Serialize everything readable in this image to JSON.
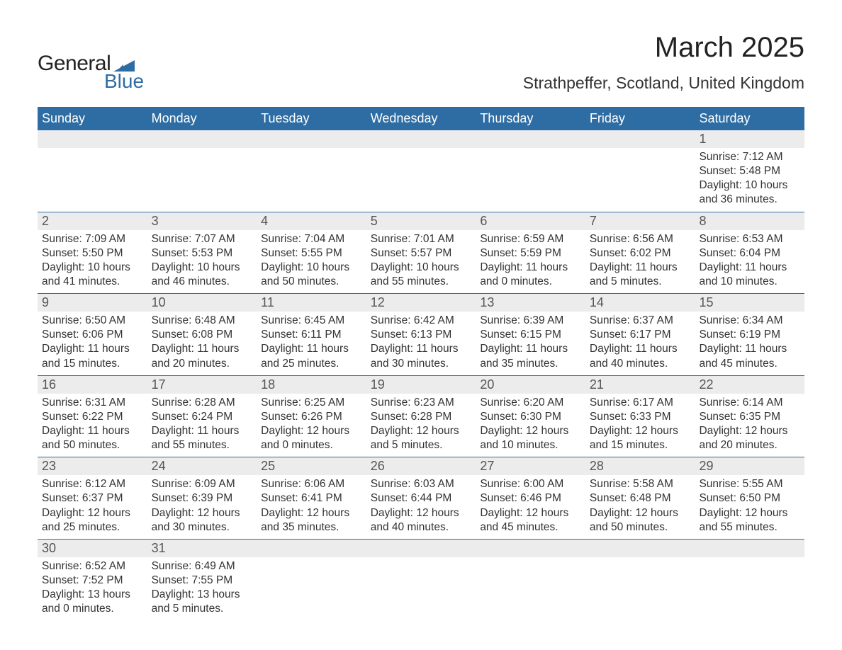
{
  "brand": {
    "logo_main": "General",
    "logo_sub": "Blue",
    "logo_main_color": "#222222",
    "logo_sub_color": "#2e6da4",
    "logo_triangle_color": "#2e6da4"
  },
  "header": {
    "title": "March 2025",
    "subtitle": "Strathpeffer, Scotland, United Kingdom",
    "title_fontsize": 40,
    "subtitle_fontsize": 23,
    "title_color": "#222222"
  },
  "colors": {
    "dow_background": "#2e6da4",
    "dow_text": "#ffffff",
    "daynum_background": "#ececec",
    "daynum_text": "#555555",
    "body_text": "#333333",
    "week_border": "#2e6da4",
    "page_background": "#ffffff"
  },
  "typography": {
    "dow_fontsize": 18,
    "daynum_fontsize": 18,
    "data_fontsize": 15.5,
    "font_family": "Arial"
  },
  "days_of_week": [
    "Sunday",
    "Monday",
    "Tuesday",
    "Wednesday",
    "Thursday",
    "Friday",
    "Saturday"
  ],
  "weeks": [
    [
      {
        "n": "",
        "sunrise": "",
        "sunset": "",
        "daylight1": "",
        "daylight2": ""
      },
      {
        "n": "",
        "sunrise": "",
        "sunset": "",
        "daylight1": "",
        "daylight2": ""
      },
      {
        "n": "",
        "sunrise": "",
        "sunset": "",
        "daylight1": "",
        "daylight2": ""
      },
      {
        "n": "",
        "sunrise": "",
        "sunset": "",
        "daylight1": "",
        "daylight2": ""
      },
      {
        "n": "",
        "sunrise": "",
        "sunset": "",
        "daylight1": "",
        "daylight2": ""
      },
      {
        "n": "",
        "sunrise": "",
        "sunset": "",
        "daylight1": "",
        "daylight2": ""
      },
      {
        "n": "1",
        "sunrise": "Sunrise: 7:12 AM",
        "sunset": "Sunset: 5:48 PM",
        "daylight1": "Daylight: 10 hours",
        "daylight2": "and 36 minutes."
      }
    ],
    [
      {
        "n": "2",
        "sunrise": "Sunrise: 7:09 AM",
        "sunset": "Sunset: 5:50 PM",
        "daylight1": "Daylight: 10 hours",
        "daylight2": "and 41 minutes."
      },
      {
        "n": "3",
        "sunrise": "Sunrise: 7:07 AM",
        "sunset": "Sunset: 5:53 PM",
        "daylight1": "Daylight: 10 hours",
        "daylight2": "and 46 minutes."
      },
      {
        "n": "4",
        "sunrise": "Sunrise: 7:04 AM",
        "sunset": "Sunset: 5:55 PM",
        "daylight1": "Daylight: 10 hours",
        "daylight2": "and 50 minutes."
      },
      {
        "n": "5",
        "sunrise": "Sunrise: 7:01 AM",
        "sunset": "Sunset: 5:57 PM",
        "daylight1": "Daylight: 10 hours",
        "daylight2": "and 55 minutes."
      },
      {
        "n": "6",
        "sunrise": "Sunrise: 6:59 AM",
        "sunset": "Sunset: 5:59 PM",
        "daylight1": "Daylight: 11 hours",
        "daylight2": "and 0 minutes."
      },
      {
        "n": "7",
        "sunrise": "Sunrise: 6:56 AM",
        "sunset": "Sunset: 6:02 PM",
        "daylight1": "Daylight: 11 hours",
        "daylight2": "and 5 minutes."
      },
      {
        "n": "8",
        "sunrise": "Sunrise: 6:53 AM",
        "sunset": "Sunset: 6:04 PM",
        "daylight1": "Daylight: 11 hours",
        "daylight2": "and 10 minutes."
      }
    ],
    [
      {
        "n": "9",
        "sunrise": "Sunrise: 6:50 AM",
        "sunset": "Sunset: 6:06 PM",
        "daylight1": "Daylight: 11 hours",
        "daylight2": "and 15 minutes."
      },
      {
        "n": "10",
        "sunrise": "Sunrise: 6:48 AM",
        "sunset": "Sunset: 6:08 PM",
        "daylight1": "Daylight: 11 hours",
        "daylight2": "and 20 minutes."
      },
      {
        "n": "11",
        "sunrise": "Sunrise: 6:45 AM",
        "sunset": "Sunset: 6:11 PM",
        "daylight1": "Daylight: 11 hours",
        "daylight2": "and 25 minutes."
      },
      {
        "n": "12",
        "sunrise": "Sunrise: 6:42 AM",
        "sunset": "Sunset: 6:13 PM",
        "daylight1": "Daylight: 11 hours",
        "daylight2": "and 30 minutes."
      },
      {
        "n": "13",
        "sunrise": "Sunrise: 6:39 AM",
        "sunset": "Sunset: 6:15 PM",
        "daylight1": "Daylight: 11 hours",
        "daylight2": "and 35 minutes."
      },
      {
        "n": "14",
        "sunrise": "Sunrise: 6:37 AM",
        "sunset": "Sunset: 6:17 PM",
        "daylight1": "Daylight: 11 hours",
        "daylight2": "and 40 minutes."
      },
      {
        "n": "15",
        "sunrise": "Sunrise: 6:34 AM",
        "sunset": "Sunset: 6:19 PM",
        "daylight1": "Daylight: 11 hours",
        "daylight2": "and 45 minutes."
      }
    ],
    [
      {
        "n": "16",
        "sunrise": "Sunrise: 6:31 AM",
        "sunset": "Sunset: 6:22 PM",
        "daylight1": "Daylight: 11 hours",
        "daylight2": "and 50 minutes."
      },
      {
        "n": "17",
        "sunrise": "Sunrise: 6:28 AM",
        "sunset": "Sunset: 6:24 PM",
        "daylight1": "Daylight: 11 hours",
        "daylight2": "and 55 minutes."
      },
      {
        "n": "18",
        "sunrise": "Sunrise: 6:25 AM",
        "sunset": "Sunset: 6:26 PM",
        "daylight1": "Daylight: 12 hours",
        "daylight2": "and 0 minutes."
      },
      {
        "n": "19",
        "sunrise": "Sunrise: 6:23 AM",
        "sunset": "Sunset: 6:28 PM",
        "daylight1": "Daylight: 12 hours",
        "daylight2": "and 5 minutes."
      },
      {
        "n": "20",
        "sunrise": "Sunrise: 6:20 AM",
        "sunset": "Sunset: 6:30 PM",
        "daylight1": "Daylight: 12 hours",
        "daylight2": "and 10 minutes."
      },
      {
        "n": "21",
        "sunrise": "Sunrise: 6:17 AM",
        "sunset": "Sunset: 6:33 PM",
        "daylight1": "Daylight: 12 hours",
        "daylight2": "and 15 minutes."
      },
      {
        "n": "22",
        "sunrise": "Sunrise: 6:14 AM",
        "sunset": "Sunset: 6:35 PM",
        "daylight1": "Daylight: 12 hours",
        "daylight2": "and 20 minutes."
      }
    ],
    [
      {
        "n": "23",
        "sunrise": "Sunrise: 6:12 AM",
        "sunset": "Sunset: 6:37 PM",
        "daylight1": "Daylight: 12 hours",
        "daylight2": "and 25 minutes."
      },
      {
        "n": "24",
        "sunrise": "Sunrise: 6:09 AM",
        "sunset": "Sunset: 6:39 PM",
        "daylight1": "Daylight: 12 hours",
        "daylight2": "and 30 minutes."
      },
      {
        "n": "25",
        "sunrise": "Sunrise: 6:06 AM",
        "sunset": "Sunset: 6:41 PM",
        "daylight1": "Daylight: 12 hours",
        "daylight2": "and 35 minutes."
      },
      {
        "n": "26",
        "sunrise": "Sunrise: 6:03 AM",
        "sunset": "Sunset: 6:44 PM",
        "daylight1": "Daylight: 12 hours",
        "daylight2": "and 40 minutes."
      },
      {
        "n": "27",
        "sunrise": "Sunrise: 6:00 AM",
        "sunset": "Sunset: 6:46 PM",
        "daylight1": "Daylight: 12 hours",
        "daylight2": "and 45 minutes."
      },
      {
        "n": "28",
        "sunrise": "Sunrise: 5:58 AM",
        "sunset": "Sunset: 6:48 PM",
        "daylight1": "Daylight: 12 hours",
        "daylight2": "and 50 minutes."
      },
      {
        "n": "29",
        "sunrise": "Sunrise: 5:55 AM",
        "sunset": "Sunset: 6:50 PM",
        "daylight1": "Daylight: 12 hours",
        "daylight2": "and 55 minutes."
      }
    ],
    [
      {
        "n": "30",
        "sunrise": "Sunrise: 6:52 AM",
        "sunset": "Sunset: 7:52 PM",
        "daylight1": "Daylight: 13 hours",
        "daylight2": "and 0 minutes."
      },
      {
        "n": "31",
        "sunrise": "Sunrise: 6:49 AM",
        "sunset": "Sunset: 7:55 PM",
        "daylight1": "Daylight: 13 hours",
        "daylight2": "and 5 minutes."
      },
      {
        "n": "",
        "sunrise": "",
        "sunset": "",
        "daylight1": "",
        "daylight2": ""
      },
      {
        "n": "",
        "sunrise": "",
        "sunset": "",
        "daylight1": "",
        "daylight2": ""
      },
      {
        "n": "",
        "sunrise": "",
        "sunset": "",
        "daylight1": "",
        "daylight2": ""
      },
      {
        "n": "",
        "sunrise": "",
        "sunset": "",
        "daylight1": "",
        "daylight2": ""
      },
      {
        "n": "",
        "sunrise": "",
        "sunset": "",
        "daylight1": "",
        "daylight2": ""
      }
    ]
  ]
}
